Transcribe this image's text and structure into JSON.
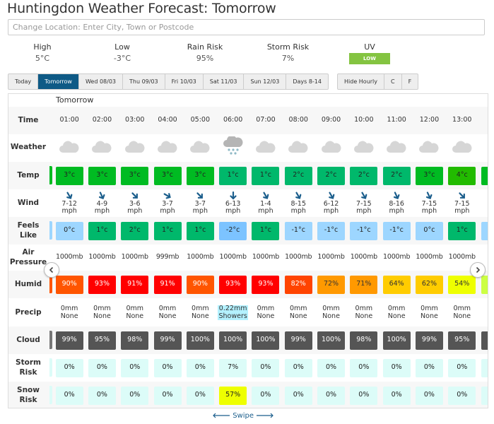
{
  "title": "Huntingdon Weather Forecast: Tomorrow",
  "location_placeholder": "Change Location: Enter City, Town or Postcode",
  "summary": {
    "high": {
      "label": "High",
      "value": "5°C"
    },
    "low": {
      "label": "Low",
      "value": "-3°C"
    },
    "rain": {
      "label": "Rain Risk",
      "value": "95%"
    },
    "storm": {
      "label": "Storm Risk",
      "value": "7%"
    },
    "uv": {
      "label": "UV",
      "value": "LOW",
      "color": "#84c441"
    }
  },
  "tabs": [
    "Today",
    "Tomorrow",
    "Wed 08/03",
    "Thu 09/03",
    "Fri 10/03",
    "Sat 11/03",
    "Sun 12/03",
    "Days 8-14"
  ],
  "active_tab": "Tomorrow",
  "options": [
    "Hide Hourly",
    "C",
    "F"
  ],
  "day_label": "Tomorrow",
  "row_labels": {
    "time": "Time",
    "weather": "Weather",
    "temp": "Temp",
    "wind": "Wind",
    "feels": "Feels Like",
    "pressure": "Air Pressure",
    "humid": "Humid",
    "precip": "Precip",
    "cloud": "Cloud",
    "storm": "Storm Risk",
    "snow": "Snow Risk"
  },
  "hours": [
    {
      "time": "01:00",
      "weather": "cloud-icon",
      "temp": "3°c",
      "temp_color": "#00bb22",
      "wind": "7-12",
      "wind_unit": "mph",
      "wind_rot": -30,
      "feels": "0°c",
      "feels_color": "#9dd6ff",
      "pressure": "1000mb",
      "humid": "90%",
      "humid_color": "#ff5500",
      "precip": "0mm",
      "precip_type": "None",
      "cloud": "99%",
      "storm": "0%",
      "snow": "0%",
      "snow_color": "#dcfcf8"
    },
    {
      "time": "02:00",
      "weather": "cloud-icon",
      "temp": "3°c",
      "temp_color": "#00bb22",
      "wind": "4-9",
      "wind_unit": "mph",
      "wind_rot": -25,
      "feels": "1°c",
      "feels_color": "#00b86b",
      "pressure": "1000mb",
      "humid": "93%",
      "humid_color": "#ff0000",
      "precip": "0mm",
      "precip_type": "None",
      "cloud": "95%",
      "storm": "0%",
      "snow": "0%",
      "snow_color": "#dcfcf8"
    },
    {
      "time": "03:00",
      "weather": "cloud-icon",
      "temp": "3°c",
      "temp_color": "#00bb22",
      "wind": "3-6",
      "wind_unit": "mph",
      "wind_rot": -45,
      "feels": "2°c",
      "feels_color": "#00b86b",
      "pressure": "1000mb",
      "humid": "91%",
      "humid_color": "#ff0000",
      "precip": "0mm",
      "precip_type": "None",
      "cloud": "98%",
      "storm": "0%",
      "snow": "0%",
      "snow_color": "#dcfcf8"
    },
    {
      "time": "04:00",
      "weather": "cloud-icon",
      "temp": "3°c",
      "temp_color": "#00bb22",
      "wind": "3-7",
      "wind_unit": "mph",
      "wind_rot": -60,
      "feels": "1°c",
      "feels_color": "#00b86b",
      "pressure": "999mb",
      "humid": "91%",
      "humid_color": "#ff0000",
      "precip": "0mm",
      "precip_type": "None",
      "cloud": "99%",
      "storm": "0%",
      "snow": "0%",
      "snow_color": "#dcfcf8"
    },
    {
      "time": "05:00",
      "weather": "cloud-icon",
      "temp": "3°c",
      "temp_color": "#00bb22",
      "wind": "3-7",
      "wind_unit": "mph",
      "wind_rot": -45,
      "feels": "1°c",
      "feels_color": "#00b86b",
      "pressure": "1000mb",
      "humid": "90%",
      "humid_color": "#ff5500",
      "precip": "0mm",
      "precip_type": "None",
      "cloud": "100%",
      "storm": "0%",
      "snow": "0%",
      "snow_color": "#dcfcf8"
    },
    {
      "time": "06:00",
      "weather": "snow-cloud-icon",
      "temp": "1°c",
      "temp_color": "#00b86b",
      "wind": "6-13",
      "wind_unit": "mph",
      "wind_rot": 0,
      "feels": "-2°c",
      "feels_color": "#7cc3ff",
      "pressure": "1000mb",
      "humid": "93%",
      "humid_color": "#ff0000",
      "precip": "0.22mm",
      "precip_type": "Showers",
      "cloud": "100%",
      "storm": "7%",
      "snow": "57%",
      "snow_color": "#eeff00"
    },
    {
      "time": "07:00",
      "weather": "cloud-icon",
      "temp": "1°c",
      "temp_color": "#00b86b",
      "wind": "1-4",
      "wind_unit": "mph",
      "wind_rot": -30,
      "feels": "1°c",
      "feels_color": "#00b86b",
      "pressure": "1000mb",
      "humid": "93%",
      "humid_color": "#ff0000",
      "precip": "0mm",
      "precip_type": "None",
      "cloud": "100%",
      "storm": "0%",
      "snow": "0%",
      "snow_color": "#dcfcf8"
    },
    {
      "time": "08:00",
      "weather": "cloud-icon",
      "temp": "2°c",
      "temp_color": "#00b86b",
      "wind": "8-15",
      "wind_unit": "mph",
      "wind_rot": -30,
      "feels": "-1°c",
      "feels_color": "#9dd6ff",
      "pressure": "1000mb",
      "humid": "82%",
      "humid_color": "#ff4400",
      "precip": "0mm",
      "precip_type": "None",
      "cloud": "99%",
      "storm": "0%",
      "snow": "0%",
      "snow_color": "#dcfcf8"
    },
    {
      "time": "09:00",
      "weather": "cloud-icon",
      "temp": "2°c",
      "temp_color": "#00b86b",
      "wind": "6-12",
      "wind_unit": "mph",
      "wind_rot": -30,
      "feels": "-1°c",
      "feels_color": "#9dd6ff",
      "pressure": "1000mb",
      "humid": "72%",
      "humid_color": "#ff9900",
      "precip": "0mm",
      "precip_type": "None",
      "cloud": "100%",
      "storm": "0%",
      "snow": "0%",
      "snow_color": "#dcfcf8"
    },
    {
      "time": "10:00",
      "weather": "cloud-icon",
      "temp": "2°c",
      "temp_color": "#00b86b",
      "wind": "7-15",
      "wind_unit": "mph",
      "wind_rot": -30,
      "feels": "-1°c",
      "feels_color": "#9dd6ff",
      "pressure": "1000mb",
      "humid": "71%",
      "humid_color": "#ff9900",
      "precip": "0mm",
      "precip_type": "None",
      "cloud": "98%",
      "storm": "0%",
      "snow": "0%",
      "snow_color": "#dcfcf8"
    },
    {
      "time": "11:00",
      "weather": "cloud-icon",
      "temp": "2°c",
      "temp_color": "#00b86b",
      "wind": "8-16",
      "wind_unit": "mph",
      "wind_rot": -25,
      "feels": "-1°c",
      "feels_color": "#9dd6ff",
      "pressure": "1000mb",
      "humid": "64%",
      "humid_color": "#ffcc00",
      "precip": "0mm",
      "precip_type": "None",
      "cloud": "100%",
      "storm": "0%",
      "snow": "0%",
      "snow_color": "#dcfcf8"
    },
    {
      "time": "12:00",
      "weather": "cloud-icon",
      "temp": "3°c",
      "temp_color": "#00bb22",
      "wind": "7-15",
      "wind_unit": "mph",
      "wind_rot": -25,
      "feels": "0°c",
      "feels_color": "#9dd6ff",
      "pressure": "1000mb",
      "humid": "62%",
      "humid_color": "#ffcc00",
      "precip": "0mm",
      "precip_type": "None",
      "cloud": "99%",
      "storm": "0%",
      "snow": "0%",
      "snow_color": "#dcfcf8"
    },
    {
      "time": "13:00",
      "weather": "cloud-icon",
      "temp": "4°c",
      "temp_color": "#22bb00",
      "wind": "7-15",
      "wind_unit": "mph",
      "wind_rot": -45,
      "feels": "1°c",
      "feels_color": "#00b86b",
      "pressure": "1000mb",
      "humid": "54%",
      "humid_color": "#eeff00",
      "precip": "0mm",
      "precip_type": "None",
      "cloud": "95%",
      "storm": "0%",
      "snow": "0%",
      "snow_color": "#dcfcf8"
    }
  ],
  "cloud_color": "#555555",
  "storm_color": "#dcfcf8",
  "swipe_label": "Swipe"
}
